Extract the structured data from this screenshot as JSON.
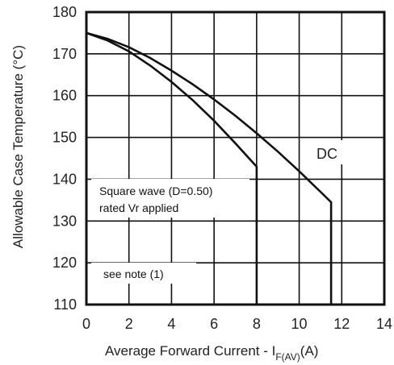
{
  "chart_data": {
    "type": "line",
    "title": "",
    "xlabel": "Average Forward Current - I",
    "xlabel_sub": "F(AV)",
    "xlabel_unit": "(A)",
    "ylabel": "Allowable Case Temperature (°C)",
    "xlim": [
      0,
      14
    ],
    "ylim": [
      110,
      180
    ],
    "x_ticks": [
      0,
      2,
      4,
      6,
      8,
      10,
      12,
      14
    ],
    "y_ticks": [
      110,
      120,
      130,
      140,
      150,
      160,
      170,
      180
    ],
    "grid": true,
    "series": [
      {
        "name": "DC",
        "x": [
          0,
          1,
          2,
          3,
          4,
          5,
          6,
          7,
          8,
          9,
          10,
          11,
          11.5
        ],
        "y": [
          175,
          173.6,
          171.6,
          169.0,
          166.0,
          162.7,
          159.1,
          155.2,
          151.0,
          146.6,
          141.9,
          137.0,
          134.5
        ],
        "drop_to": 110
      },
      {
        "name": "",
        "x": [
          0,
          1,
          2,
          3,
          4,
          5,
          6,
          7,
          8
        ],
        "y": [
          175,
          173.2,
          170.6,
          167.2,
          163.3,
          158.9,
          154.0,
          148.6,
          143.0
        ],
        "drop_to": 110
      }
    ],
    "annotations": {
      "dc_label": "DC",
      "square_wave_line1": "Square wave (D=0.50)",
      "square_wave_line2": "rated Vr applied",
      "note": "see note (1)"
    }
  }
}
